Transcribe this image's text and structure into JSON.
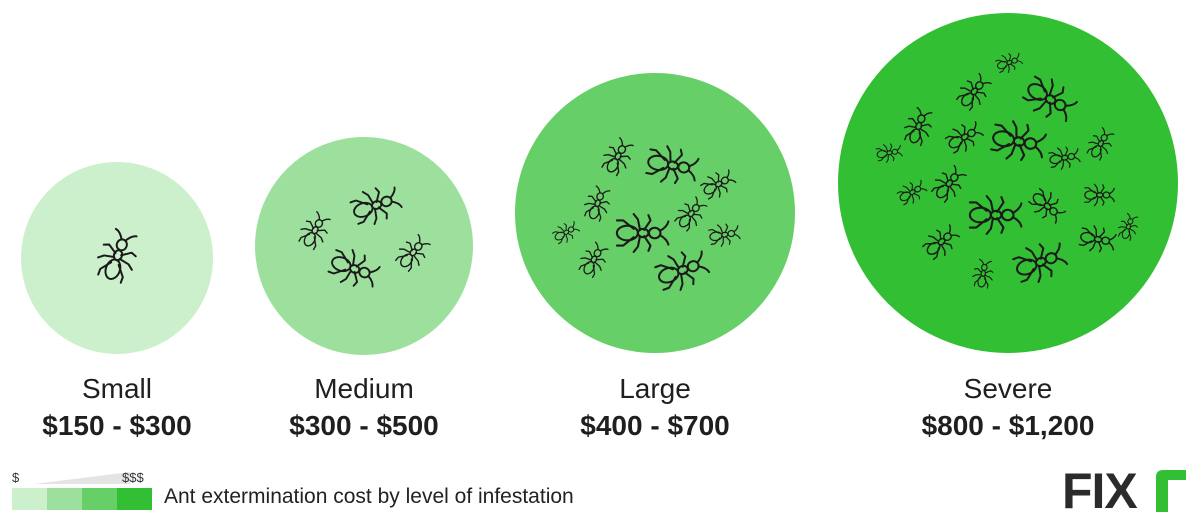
{
  "chart_data": {
    "type": "bubble",
    "caption": "Ant extermination cost by level of infestation",
    "legend": {
      "low_label": "$",
      "high_label": "$$$"
    },
    "categories": [
      "Small",
      "Medium",
      "Large",
      "Severe"
    ],
    "prices": [
      "$150 - $300",
      "$300 - $500",
      "$400 - $700",
      "$800 - $1,200"
    ],
    "price_min": [
      150,
      300,
      400,
      800
    ],
    "price_max": [
      300,
      500,
      700,
      1200
    ],
    "ant_icons": [
      1,
      4,
      10,
      19
    ],
    "colors": [
      "#ccf0cc",
      "#9de09d",
      "#67cf67",
      "#33bf33"
    ]
  },
  "brand": {
    "logo_text": "FIXR",
    "logo_color": "#2b2b2b",
    "accent_color": "#33bf33"
  }
}
